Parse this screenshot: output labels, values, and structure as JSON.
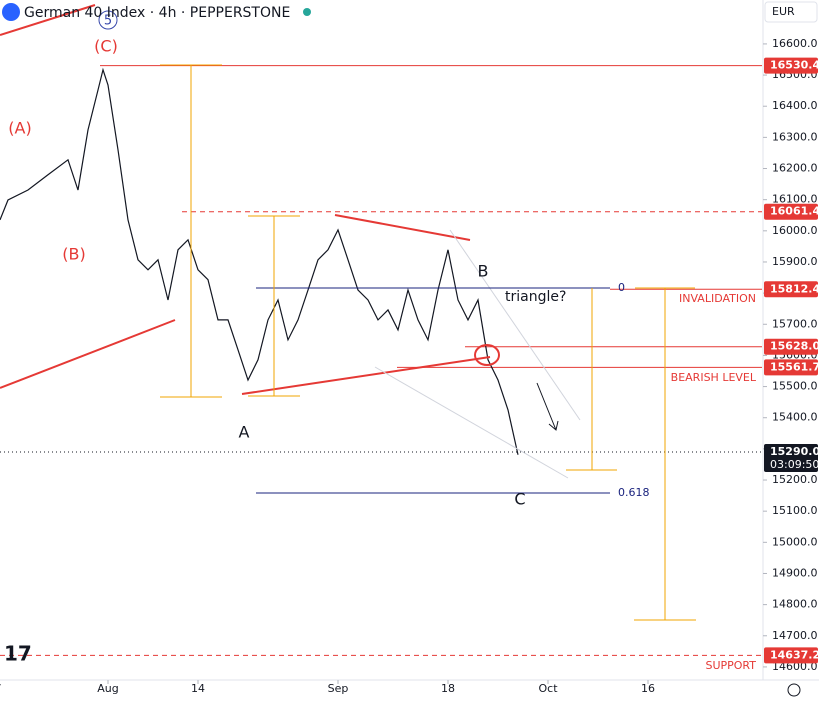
{
  "header": {
    "title": "German 40 Index · 4h · PEPPERSTONE",
    "currency": "EUR"
  },
  "chart_data": {
    "type": "line",
    "x": [
      0.2,
      1,
      3,
      5,
      7,
      8,
      9,
      10,
      10.5,
      11,
      12,
      13,
      14,
      15,
      16,
      17,
      18,
      19,
      20,
      21,
      22,
      23,
      24,
      25,
      26,
      27,
      28,
      29,
      30,
      31,
      32,
      33,
      34,
      35,
      36,
      37,
      38,
      39,
      40,
      41,
      42,
      43,
      44,
      45,
      46,
      47,
      48,
      49,
      50,
      51,
      52
    ],
    "series": [
      {
        "color": "#131722",
        "values": [
          16035,
          16099,
          16131,
          16180,
          16228,
          16131,
          16324,
          16452,
          16517,
          16468,
          16260,
          16035,
          15907,
          15875,
          15907,
          15778,
          15939,
          15971,
          15875,
          15843,
          15714,
          15714,
          15618,
          15521,
          15586,
          15714,
          15778,
          15650,
          15714,
          15810,
          15907,
          15939,
          16003,
          15907,
          15810,
          15778,
          15714,
          15746,
          15682,
          15810,
          15714,
          15650,
          15810,
          15939,
          15778,
          15714,
          15778,
          15586,
          15521,
          15425,
          15281
        ]
      }
    ],
    "xlim": [
      0.2,
      76.4
    ],
    "xticks": [
      {
        "value": 0,
        "label": "7"
      },
      {
        "value": 11,
        "label": "Aug"
      },
      {
        "value": 20,
        "label": "14"
      },
      {
        "value": 34,
        "label": "Sep"
      },
      {
        "value": 45,
        "label": "18"
      },
      {
        "value": 55,
        "label": "Oct"
      },
      {
        "value": 65,
        "label": "16"
      }
    ],
    "ylim": [
      14558,
      16741
    ],
    "yticks": [
      {
        "value": 14600,
        "label": "14600.0"
      },
      {
        "value": 14700,
        "label": "14700.0"
      },
      {
        "value": 14800,
        "label": "14800.0"
      },
      {
        "value": 14900,
        "label": "14900.0"
      },
      {
        "value": 15000,
        "label": "15000.0"
      },
      {
        "value": 15100,
        "label": "15100.0"
      },
      {
        "value": 15200,
        "label": "15200.0"
      },
      {
        "value": 15300,
        "label": "15300.0"
      },
      {
        "value": 15400,
        "label": "15400.0"
      },
      {
        "value": 15500,
        "label": "15500.0"
      },
      {
        "value": 15600,
        "label": "15600.0"
      },
      {
        "value": 15700,
        "label": "15700.0"
      },
      {
        "value": 15800,
        "label": "15800.0"
      },
      {
        "value": 15900,
        "label": "15900.0"
      },
      {
        "value": 16000,
        "label": "16000.0"
      },
      {
        "value": 16100,
        "label": "16100.0"
      },
      {
        "value": 16200,
        "label": "16200.0"
      },
      {
        "value": 16300,
        "label": "16300.0"
      },
      {
        "value": 16400,
        "label": "16400.0"
      },
      {
        "value": 16500,
        "label": "16500.0"
      },
      {
        "value": 16600,
        "label": "16600.0"
      }
    ],
    "levels": [
      {
        "value": 16530.4,
        "label": "16530.4",
        "color": "#e53935"
      },
      {
        "value": 16061.4,
        "label": "16061.4",
        "color": "#e53935"
      },
      {
        "value": 15812.4,
        "label": "15812.4",
        "color": "#e53935"
      },
      {
        "value": 15628,
        "label": "15628.0",
        "color": "#e53935"
      },
      {
        "value": 15561.7,
        "label": "15561.7",
        "color": "#e53935"
      },
      {
        "value": 15290,
        "label": "15290.0",
        "color": "#131722",
        "countdown": "03:09:50"
      },
      {
        "value": 14637.2,
        "label": "14637.2",
        "color": "#e53935"
      }
    ],
    "annotations": {
      "wave_A_big": "(A)",
      "wave_B_big": "(B)",
      "wave_C_big": "(C)",
      "wave_5": "5",
      "wave_A": "A",
      "wave_B": "B",
      "wave_C": "C",
      "triangle": "triangle?",
      "invalidation": "INVALIDATION",
      "bearish": "BEARISH LEVEL",
      "support": "SUPPORT",
      "fib_0": "0",
      "fib_618": "0.618"
    }
  }
}
